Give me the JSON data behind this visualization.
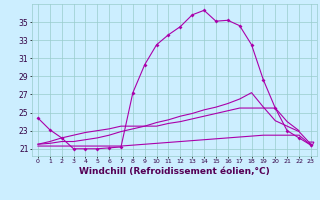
{
  "background_color": "#cceeff",
  "grid_color": "#99cccc",
  "line_color": "#aa00aa",
  "xlabel": "Windchill (Refroidissement éolien,°C)",
  "xlabel_fontsize": 6.5,
  "yticks": [
    21,
    23,
    25,
    27,
    29,
    31,
    33,
    35
  ],
  "xticks": [
    0,
    1,
    2,
    3,
    4,
    5,
    6,
    7,
    8,
    9,
    10,
    11,
    12,
    13,
    14,
    15,
    16,
    17,
    18,
    19,
    20,
    21,
    22,
    23
  ],
  "xlim": [
    -0.5,
    23.5
  ],
  "ylim": [
    20.2,
    37.0
  ],
  "series1": [
    24.4,
    23.1,
    22.2,
    21.0,
    21.0,
    21.0,
    21.1,
    21.2,
    27.2,
    30.3,
    32.5,
    33.6,
    34.5,
    35.8,
    36.3,
    35.1,
    35.2,
    34.6,
    32.5,
    28.6,
    25.5,
    23.0,
    22.2,
    21.4
  ],
  "series2": [
    21.3,
    21.3,
    21.3,
    21.3,
    21.3,
    21.3,
    21.3,
    21.3,
    21.4,
    21.5,
    21.6,
    21.7,
    21.8,
    21.9,
    22.0,
    22.1,
    22.2,
    22.3,
    22.4,
    22.5,
    22.5,
    22.5,
    22.5,
    21.4
  ],
  "series3": [
    21.5,
    21.6,
    21.8,
    21.8,
    22.0,
    22.2,
    22.5,
    22.9,
    23.2,
    23.5,
    23.9,
    24.2,
    24.6,
    24.9,
    25.3,
    25.6,
    26.0,
    26.5,
    27.2,
    25.6,
    24.1,
    23.5,
    22.9,
    21.5
  ],
  "series4": [
    21.5,
    21.8,
    22.2,
    22.5,
    22.8,
    23.0,
    23.2,
    23.5,
    23.5,
    23.5,
    23.5,
    23.8,
    24.0,
    24.3,
    24.6,
    24.9,
    25.2,
    25.5,
    25.5,
    25.5,
    25.5,
    24.0,
    23.0,
    21.5
  ]
}
